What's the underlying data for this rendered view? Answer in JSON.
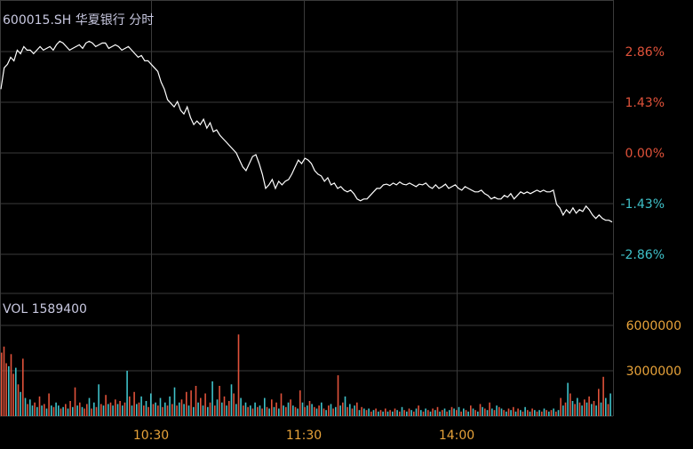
{
  "header": {
    "symbol_title": "600015.SH 华夏银行 分时"
  },
  "volume_header": {
    "label": "VOL 1589400"
  },
  "colors": {
    "background": "#000000",
    "grid": "#3a3a3a",
    "price_line": "#ffffff",
    "up": "#e0523a",
    "down": "#3fc1c9",
    "neutral_label": "#e0523a",
    "volume_axis_label": "#e8a33a",
    "time_label": "#e8a33a",
    "title_text": "#c8c8e0"
  },
  "chart_data": [
    {
      "type": "line",
      "title": "600015.SH 华夏银行 分时",
      "yaxis_ticks": [
        "2.86%",
        "1.43%",
        "0.00%",
        "-1.43%",
        "-2.86%"
      ],
      "ytick_values": [
        2.86,
        1.43,
        0.0,
        -1.43,
        -2.86
      ],
      "ylim": [
        -3.86,
        3.86
      ],
      "xaxis_ticks": [
        "10:30",
        "11:30",
        "14:00"
      ],
      "grid": true,
      "series": [
        {
          "values": [
            1.8,
            2.4,
            2.5,
            2.7,
            2.6,
            2.9,
            2.8,
            3.0,
            2.9,
            2.9,
            2.8,
            2.9,
            3.0,
            2.9,
            2.95,
            3.0,
            2.9,
            3.05,
            3.15,
            3.1,
            3.0,
            2.9,
            2.95,
            3.0,
            3.05,
            2.95,
            3.1,
            3.15,
            3.1,
            3.0,
            3.05,
            3.1,
            3.1,
            2.95,
            3.0,
            3.05,
            3.0,
            2.9,
            2.95,
            3.0,
            2.9,
            2.8,
            2.7,
            2.75,
            2.6,
            2.6,
            2.5,
            2.4,
            2.3,
            2.0,
            1.8,
            1.5,
            1.4,
            1.3,
            1.45,
            1.2,
            1.1,
            1.3,
            1.0,
            0.8,
            0.9,
            0.8,
            0.95,
            0.7,
            0.85,
            0.6,
            0.65,
            0.5,
            0.4,
            0.3,
            0.2,
            0.1,
            0.0,
            -0.2,
            -0.4,
            -0.5,
            -0.3,
            -0.1,
            -0.05,
            -0.3,
            -0.6,
            -1.0,
            -0.9,
            -0.75,
            -1.0,
            -0.8,
            -0.9,
            -0.8,
            -0.75,
            -0.6,
            -0.4,
            -0.2,
            -0.3,
            -0.15,
            -0.2,
            -0.3,
            -0.5,
            -0.6,
            -0.65,
            -0.8,
            -0.7,
            -0.9,
            -0.85,
            -1.0,
            -0.95,
            -1.05,
            -1.1,
            -1.05,
            -1.15,
            -1.3,
            -1.35,
            -1.3,
            -1.3,
            -1.2,
            -1.1,
            -1.0,
            -1.0,
            -0.9,
            -0.88,
            -0.92,
            -0.85,
            -0.9,
            -0.82,
            -0.88,
            -0.9,
            -0.85,
            -0.9,
            -0.95,
            -0.88,
            -0.9,
            -0.85,
            -0.95,
            -1.0,
            -0.9,
            -1.0,
            -0.95,
            -0.88,
            -1.0,
            -0.95,
            -0.9,
            -1.0,
            -1.05,
            -0.95,
            -1.0,
            -1.05,
            -1.1,
            -1.1,
            -1.05,
            -1.15,
            -1.2,
            -1.3,
            -1.25,
            -1.3,
            -1.3,
            -1.2,
            -1.25,
            -1.15,
            -1.3,
            -1.2,
            -1.1,
            -1.15,
            -1.1,
            -1.15,
            -1.1,
            -1.05,
            -1.1,
            -1.05,
            -1.1,
            -1.1,
            -1.05,
            -1.45,
            -1.55,
            -1.75,
            -1.6,
            -1.7,
            -1.55,
            -1.7,
            -1.6,
            -1.65,
            -1.5,
            -1.6,
            -1.75,
            -1.85,
            -1.75,
            -1.85,
            -1.9,
            -1.9,
            -1.95
          ]
        }
      ]
    },
    {
      "type": "bar",
      "title": "VOL 1589400",
      "yaxis_ticks": [
        "6000000",
        "3000000"
      ],
      "ytick_values": [
        6000000,
        3000000
      ],
      "ylim": [
        0,
        8300000
      ],
      "xaxis_ticks": [
        "10:30",
        "11:30",
        "14:00"
      ],
      "series": [
        {
          "values": [
            4200000,
            4600000,
            3500000,
            3300000,
            4100000,
            2800000,
            3200000,
            2100000,
            1600000,
            3800000,
            1200000,
            800000,
            1100000,
            700000,
            900000,
            600000,
            1300000,
            700000,
            800000,
            500000,
            1500000,
            700000,
            600000,
            900000,
            700000,
            500000,
            600000,
            800000,
            500000,
            1000000,
            600000,
            1900000,
            700000,
            900000,
            600000,
            500000,
            800000,
            1200000,
            500000,
            900000,
            600000,
            2100000,
            800000,
            700000,
            1400000,
            800000,
            900000,
            700000,
            1100000,
            800000,
            1000000,
            700000,
            900000,
            3000000,
            1300000,
            700000,
            1600000,
            800000,
            900000,
            1300000,
            700000,
            1000000,
            600000,
            1500000,
            800000,
            900000,
            700000,
            1200000,
            600000,
            900000,
            700000,
            1300000,
            800000,
            1900000,
            700000,
            900000,
            1100000,
            800000,
            1600000,
            700000,
            1700000,
            600000,
            2000000,
            900000,
            1200000,
            700000,
            1500000,
            600000,
            900000,
            2300000,
            700000,
            1100000,
            2000000,
            900000,
            1300000,
            700000,
            1000000,
            2100000,
            1500000,
            800000,
            5400000,
            1200000,
            700000,
            900000,
            600000,
            700000,
            500000,
            900000,
            600000,
            700000,
            500000,
            1200000,
            600000,
            500000,
            1100000,
            600000,
            900000,
            500000,
            1500000,
            700000,
            600000,
            900000,
            1100000,
            700000,
            600000,
            500000,
            1700000,
            900000,
            600000,
            700000,
            1000000,
            800000,
            600000,
            500000,
            700000,
            900000,
            500000,
            400000,
            700000,
            800000,
            500000,
            600000,
            2700000,
            700000,
            900000,
            1300000,
            600000,
            800000,
            500000,
            700000,
            900000,
            400000,
            600000,
            500000,
            400000,
            500000,
            300000,
            400000,
            500000,
            300000,
            400000,
            300000,
            500000,
            300000,
            400000,
            300000,
            500000,
            400000,
            300000,
            600000,
            400000,
            300000,
            500000,
            400000,
            300000,
            500000,
            700000,
            400000,
            300000,
            500000,
            400000,
            300000,
            500000,
            400000,
            600000,
            300000,
            400000,
            500000,
            300000,
            400000,
            600000,
            500000,
            400000,
            600000,
            300000,
            500000,
            400000,
            300000,
            700000,
            500000,
            400000,
            300000,
            800000,
            600000,
            500000,
            400000,
            900000,
            500000,
            400000,
            700000,
            600000,
            500000,
            400000,
            300000,
            500000,
            400000,
            600000,
            300000,
            500000,
            400000,
            300000,
            600000,
            400000,
            300000,
            500000,
            400000,
            300000,
            400000,
            300000,
            500000,
            400000,
            300000,
            400000,
            500000,
            300000,
            400000,
            1200000,
            700000,
            900000,
            2200000,
            1500000,
            1000000,
            800000,
            1200000,
            900000,
            700000,
            1100000,
            900000,
            1300000,
            800000,
            1000000,
            700000,
            1800000,
            900000,
            2600000,
            1200000,
            800000,
            1500000
          ],
          "directions": [
            "up",
            "up",
            "up",
            "down",
            "up",
            "up",
            "down",
            "up",
            "down",
            "up",
            "down",
            "up",
            "down",
            "down",
            "up",
            "down",
            "up",
            "down",
            "up",
            "down",
            "up",
            "down",
            "up",
            "down",
            "down",
            "up",
            "down",
            "up",
            "down",
            "up",
            "down",
            "up",
            "down",
            "up",
            "down",
            "up",
            "up",
            "down",
            "up",
            "down",
            "up",
            "down",
            "up",
            "down",
            "up",
            "down",
            "up",
            "down",
            "up",
            "down",
            "up",
            "down",
            "up",
            "down",
            "up",
            "down",
            "up",
            "down",
            "up",
            "down",
            "up",
            "down",
            "up",
            "down",
            "up",
            "down",
            "up",
            "down",
            "up",
            "down",
            "up",
            "down",
            "up",
            "down",
            "up",
            "down",
            "up",
            "down",
            "up",
            "down",
            "up",
            "down",
            "up",
            "down",
            "up",
            "down",
            "up",
            "down",
            "up",
            "down",
            "up",
            "down",
            "up",
            "down",
            "up",
            "down",
            "up",
            "down",
            "up",
            "down",
            "up",
            "down",
            "up",
            "down",
            "up",
            "down",
            "up",
            "down",
            "up",
            "down",
            "up",
            "down",
            "up",
            "down",
            "up",
            "down",
            "up",
            "down",
            "up",
            "down",
            "up",
            "down",
            "up",
            "down",
            "up",
            "down",
            "up",
            "down",
            "up",
            "down",
            "up",
            "down",
            "up",
            "down",
            "up",
            "down",
            "up",
            "down",
            "up",
            "down",
            "up",
            "down",
            "up",
            "down",
            "up",
            "down",
            "up",
            "down",
            "up",
            "down",
            "up",
            "down",
            "up",
            "down",
            "up",
            "down",
            "up",
            "down",
            "up",
            "down",
            "up",
            "down",
            "up",
            "down",
            "up",
            "down",
            "up",
            "down",
            "up",
            "down",
            "up",
            "down",
            "up",
            "down",
            "up",
            "down",
            "up",
            "down",
            "up",
            "down",
            "up",
            "down",
            "up",
            "down",
            "up",
            "down",
            "up",
            "down",
            "up",
            "down",
            "up",
            "down",
            "up",
            "down",
            "up",
            "down",
            "up",
            "down",
            "up",
            "down",
            "up",
            "down",
            "up",
            "down",
            "up",
            "down",
            "up",
            "down",
            "up",
            "down",
            "up",
            "down",
            "up",
            "down",
            "up",
            "down",
            "up",
            "down",
            "up",
            "down",
            "up",
            "down",
            "up",
            "down",
            "up",
            "down",
            "up",
            "down",
            "up",
            "down",
            "up",
            "down",
            "up",
            "down",
            "up",
            "down",
            "up",
            "down",
            "up",
            "down",
            "up",
            "down",
            "up",
            "down",
            "up",
            "down",
            "up",
            "down",
            "up",
            "down",
            "up",
            "down",
            "up",
            "down",
            "up",
            "down",
            "up",
            "down"
          ]
        }
      ]
    }
  ]
}
